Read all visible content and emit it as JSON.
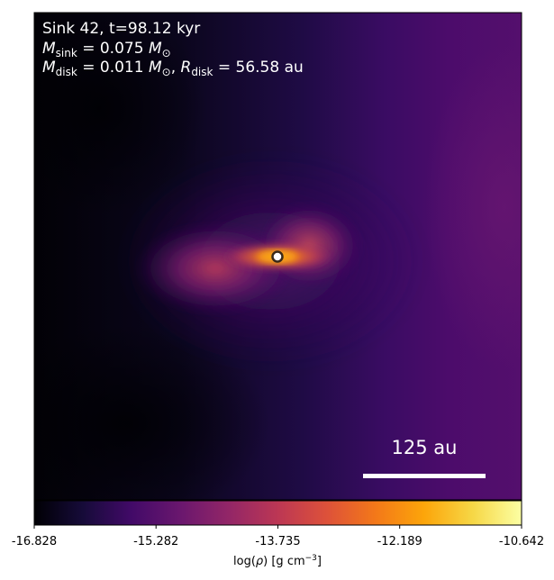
{
  "chart_data": {
    "type": "heatmap",
    "title": "",
    "annotation": {
      "line1": "Sink 42, t=98.12 kyr",
      "line2": {
        "M": "M",
        "sub": "sink",
        "rest": " = 0.075 ",
        "M2": "M",
        "sun": "⊙"
      },
      "line3": {
        "M": "M",
        "sub": "disk",
        "rest": " = 0.011 ",
        "M2": "M",
        "sun": "⊙",
        "sep": ", ",
        "R": "R",
        "rsub": "disk",
        "rrest": " = 56.58 au"
      }
    },
    "scale_bar": {
      "label": "125 au",
      "length_au": 125
    },
    "colorbar": {
      "colormap": "inferno",
      "vmin": -16.828,
      "vmax": -10.642,
      "ticks": [
        "-16.828",
        "-15.282",
        "-13.735",
        "-12.189",
        "-10.642"
      ],
      "label": "log(ρ) [g cm⁻³]",
      "label_parts": {
        "pre": "log(",
        "rho": "ρ",
        "post": ") [g cm",
        "sup": "−3",
        "end": "]"
      }
    },
    "marker": {
      "kind": "sink",
      "color": "#ffffff",
      "edge": "#3a2a1a"
    },
    "colors": {
      "bg_dark": "#030209",
      "purple_dark": "#2a0d52",
      "purple_mid": "#4b0c6b",
      "magenta": "#8a226a",
      "orange": "#f2741c",
      "yellow": "#fcffa4"
    }
  }
}
